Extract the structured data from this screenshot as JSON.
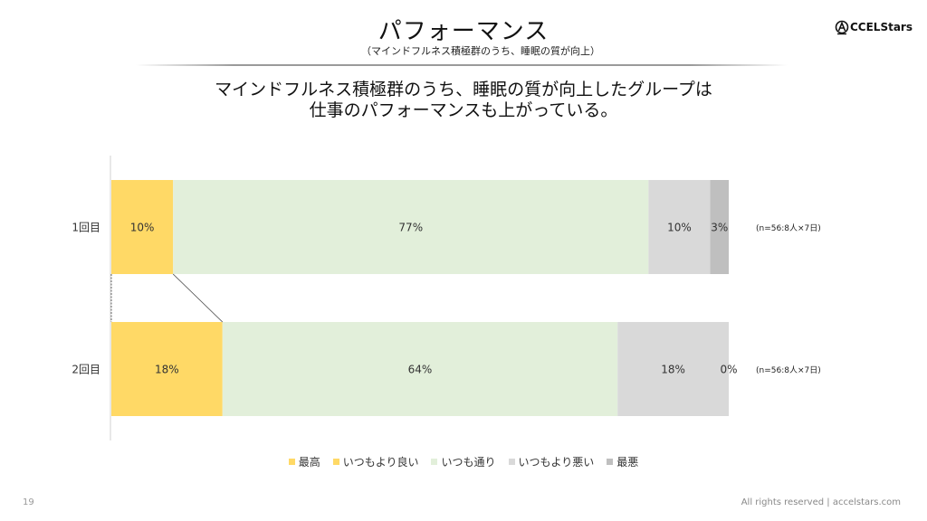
{
  "slide": {
    "title": "パフォーマンス",
    "subtitle": "（マインドフルネス積極群のうち、睡眠の質が向上）",
    "headline_line1": "マインドフルネス積極群のうち、睡眠の質が向上したグループは",
    "headline_line2": "仕事のパフォーマンスも上がっている。",
    "logo_text": "CCELStars",
    "page_number": "19",
    "footer": "All rights reserved | accelstars.com"
  },
  "chart_data": {
    "type": "bar",
    "orientation": "horizontal",
    "stacked": true,
    "normalized": true,
    "categories": [
      "1回目",
      "2回目"
    ],
    "series": [
      {
        "name": "最高",
        "color": "#ffd966",
        "values": [
          0,
          0
        ],
        "labels": [
          "",
          ""
        ]
      },
      {
        "name": "いつもより良い",
        "color": "#ffd966",
        "values": [
          10,
          18
        ],
        "labels": [
          "10%",
          "18%"
        ]
      },
      {
        "name": "いつも通り",
        "color": "#e2efda",
        "values": [
          77,
          64
        ],
        "labels": [
          "77%",
          "64%"
        ]
      },
      {
        "name": "いつもより悪い",
        "color": "#d9d9d9",
        "values": [
          10,
          18
        ],
        "labels": [
          "10%",
          "18%"
        ]
      },
      {
        "name": "最悪",
        "color": "#bfbfbf",
        "values": [
          3,
          0
        ],
        "labels": [
          "3%",
          "0%"
        ]
      }
    ],
    "row_notes": [
      "(n=56:8人×7日)",
      "(n=56:8人×7日)"
    ],
    "xlim": [
      0,
      100
    ],
    "legend_position": "bottom",
    "grid": false
  }
}
